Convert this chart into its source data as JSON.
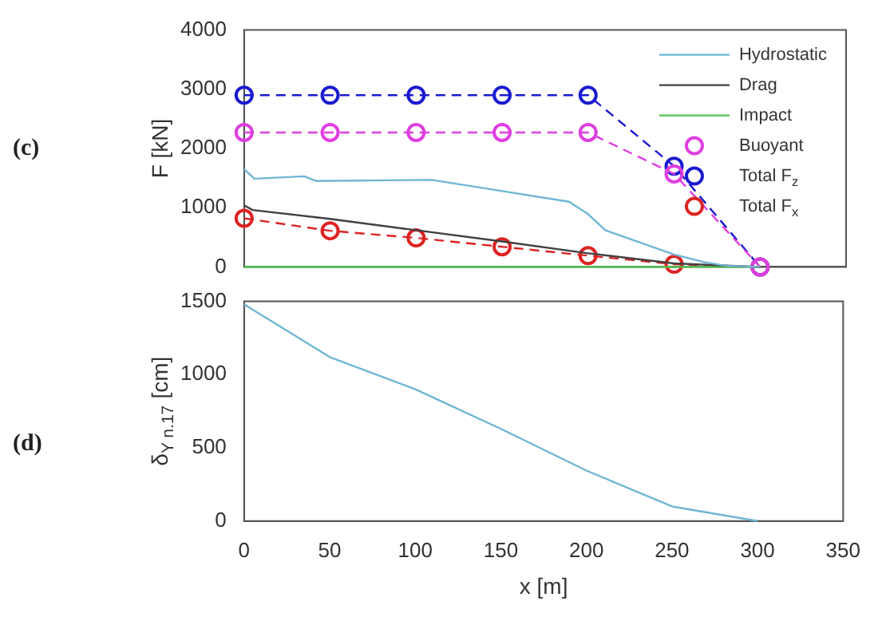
{
  "chart_data": [
    {
      "type": "line",
      "ylabel": "F [kN]",
      "annotations": [
        "(c)"
      ],
      "xlim": [
        0,
        350
      ],
      "xticks": [
        0,
        50,
        100,
        150,
        200,
        250,
        300,
        350
      ],
      "ylim": [
        0,
        4000
      ],
      "yticks": [
        0,
        1000,
        2000,
        3000,
        4000
      ],
      "tick_labels": "y",
      "grid": false,
      "legend": "top right",
      "series": [
        {
          "name": "Hydrostatic",
          "color": "#6fb6d4",
          "marker": "none",
          "line_style": "solid",
          "x": [
            0,
            6,
            35,
            42,
            109,
            150,
            189,
            200,
            210,
            250,
            267,
            280,
            300
          ],
          "values": [
            1650,
            1490,
            1530,
            1450,
            1470,
            1280,
            1100,
            890,
            620,
            210,
            85,
            20,
            0
          ]
        },
        {
          "name": "Drag",
          "color": "#404040",
          "marker": "none",
          "line_style": "solid",
          "x": [
            0,
            5,
            50,
            100,
            150,
            200,
            250,
            300
          ],
          "values": [
            1040,
            960,
            810,
            620,
            430,
            230,
            60,
            0
          ]
        },
        {
          "name": "Impact",
          "color": "#4fc94f",
          "marker": "none",
          "line_style": "solid",
          "x": [
            0,
            300
          ],
          "values": [
            0,
            0
          ]
        },
        {
          "name": "Buoyant",
          "color": "#e03ee0",
          "marker": "circle",
          "line_style": "dashed",
          "x": [
            0,
            50,
            100,
            150,
            200,
            250,
            300
          ],
          "values": [
            2270,
            2270,
            2270,
            2270,
            2270,
            1570,
            0
          ]
        },
        {
          "name": "Total F$_{z}$",
          "color": "#1a1ad0",
          "marker": "circle",
          "line_style": "dashed",
          "x": [
            0,
            50,
            100,
            150,
            200,
            250,
            300
          ],
          "values": [
            2900,
            2900,
            2900,
            2900,
            2900,
            1700,
            0
          ]
        },
        {
          "name": "Total F$_{x}$",
          "color": "#dd2222",
          "marker": "circle",
          "line_style": "dashed",
          "x": [
            0,
            50,
            100,
            150,
            200,
            250,
            300
          ],
          "values": [
            820,
            610,
            490,
            340,
            190,
            45,
            0
          ]
        }
      ]
    },
    {
      "type": "line",
      "xlabel": "x [m]",
      "ylabel": "δ$_{Y n.17}$ [cm]",
      "annotations": [
        "(d)"
      ],
      "xlim": [
        0,
        350
      ],
      "xticks": [
        0,
        50,
        100,
        150,
        200,
        250,
        300,
        350
      ],
      "ylim": [
        0,
        1500
      ],
      "yticks": [
        0,
        500,
        1000,
        1500
      ],
      "grid": false,
      "legend": false,
      "series": [
        {
          "color": "#6fb6d4",
          "marker": "none",
          "line_style": "solid",
          "x": [
            0,
            50,
            100,
            150,
            200,
            250,
            300
          ],
          "values": [
            1480,
            1120,
            900,
            630,
            345,
            100,
            0
          ]
        }
      ]
    }
  ]
}
